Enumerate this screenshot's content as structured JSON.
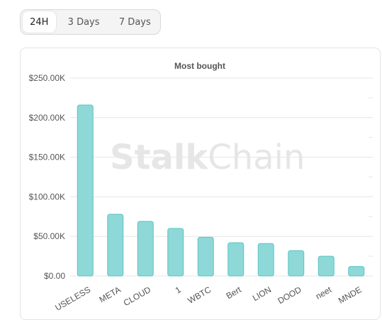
{
  "tabs": [
    {
      "label": "24H",
      "active": true
    },
    {
      "label": "3 Days",
      "active": false
    },
    {
      "label": "7 Days",
      "active": false
    }
  ],
  "watermark": {
    "part1": "Stalk",
    "part2": "Chain"
  },
  "colors": {
    "bar_fill": "#8ed8d8",
    "bar_stroke": "#5bc4c4",
    "grid": "#e6e6e6",
    "axis_text": "#555555",
    "title": "#555555",
    "watermark": "#e6e6e6"
  },
  "chart_data": {
    "type": "bar",
    "title": "Most bought",
    "xlabel": "",
    "ylabel": "",
    "categories": [
      "USELESS",
      "META",
      "CLOUD",
      "1",
      "WBTC",
      "Bert",
      "LION",
      "DOOD",
      "neet",
      "MNDE"
    ],
    "values": [
      216000,
      78000,
      69000,
      60000,
      49000,
      42000,
      41000,
      32000,
      25000,
      12000
    ],
    "ylim": [
      0,
      250000
    ],
    "yticks": [
      0,
      50000,
      100000,
      150000,
      200000,
      250000
    ],
    "ytick_labels": [
      "$0.00",
      "$50.00K",
      "$100.00K",
      "$150.00K",
      "$200.00K",
      "$250.00K"
    ],
    "grid": true,
    "legend": "none"
  }
}
